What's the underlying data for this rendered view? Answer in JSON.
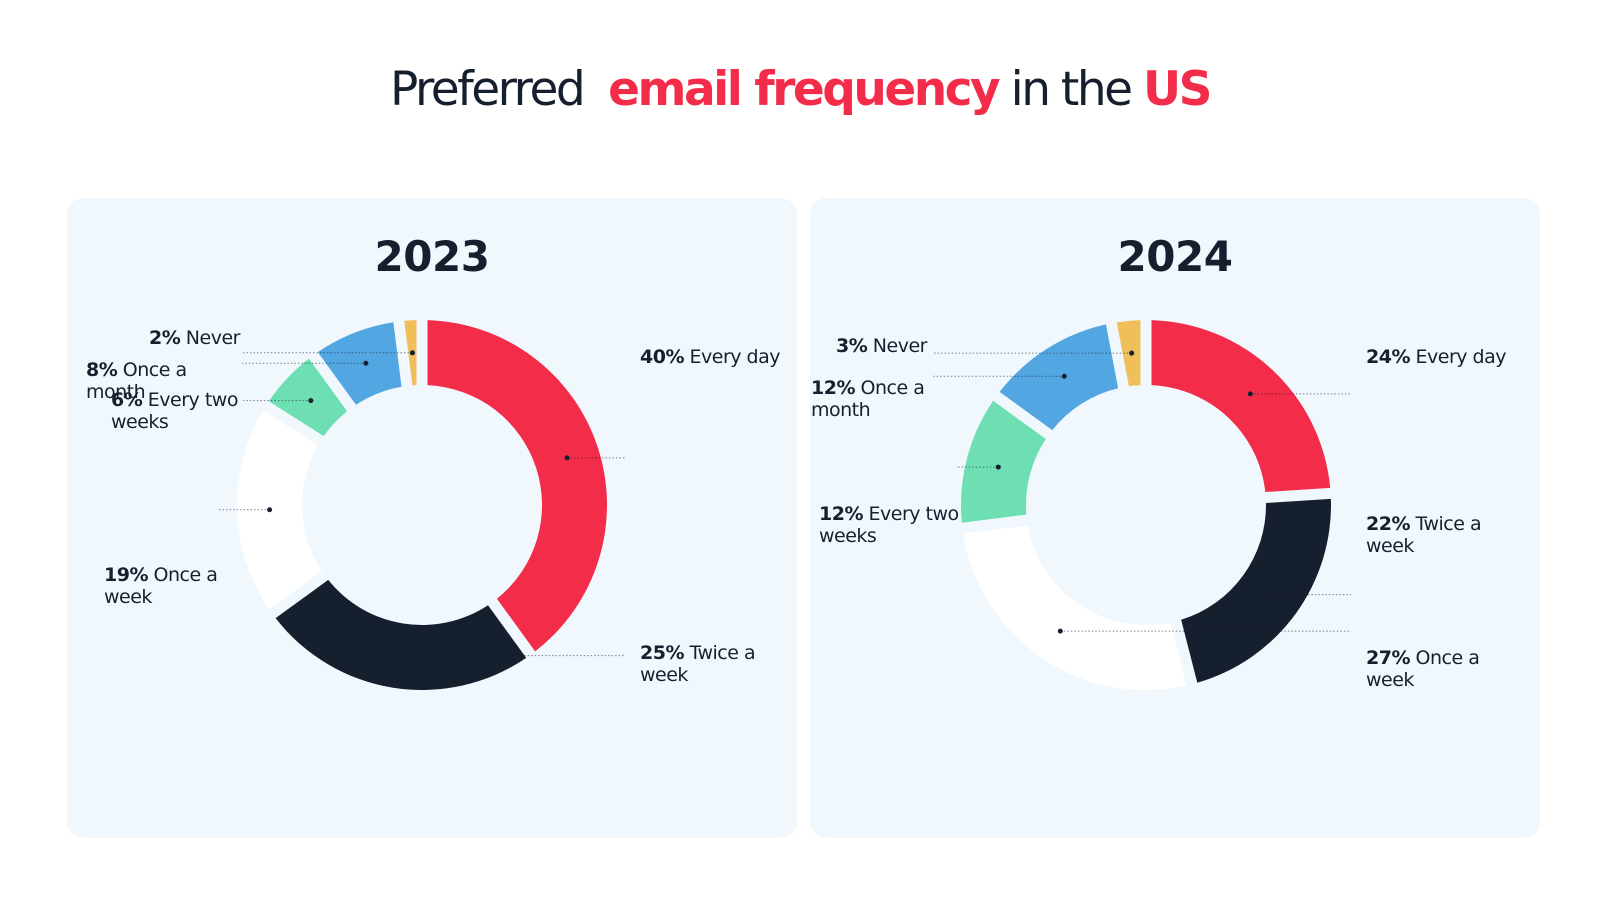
{
  "title": {
    "part1": "Preferred",
    "part2": "email frequency",
    "part3": "in the",
    "part4": "US"
  },
  "colors": {
    "accent": "#f22c49",
    "dark": "#161f2e",
    "panel_bg": "#f1f8fd"
  },
  "chart_data": [
    {
      "type": "pie",
      "variant": "donut",
      "title": "2023",
      "start": "12 o'clock, clockwise",
      "slices": [
        {
          "label": "Every day",
          "value": 40,
          "pct": "40%",
          "color": "#f22c49"
        },
        {
          "label": "Twice a week",
          "value": 25,
          "pct": "25%",
          "color": "#161f2e"
        },
        {
          "label": "Once a week",
          "value": 19,
          "pct": "19%",
          "color": "#ffffff"
        },
        {
          "label": "Every two weeks",
          "value": 6,
          "pct": "6%",
          "color": "#6ddfb3"
        },
        {
          "label": "Once a month",
          "value": 8,
          "pct": "8%",
          "color": "#52a7e2"
        },
        {
          "label": "Never",
          "value": 2,
          "pct": "2%",
          "color": "#f0bf5a"
        }
      ]
    },
    {
      "type": "pie",
      "variant": "donut",
      "title": "2024",
      "start": "12 o'clock, clockwise",
      "slices": [
        {
          "label": "Every day",
          "value": 24,
          "pct": "24%",
          "color": "#f22c49"
        },
        {
          "label": "Twice a week",
          "value": 22,
          "pct": "22%",
          "color": "#161f2e"
        },
        {
          "label": "Once a week",
          "value": 27,
          "pct": "27%",
          "color": "#ffffff"
        },
        {
          "label": "Every two weeks",
          "value": 12,
          "pct": "12%",
          "color": "#6ddfb3"
        },
        {
          "label": "Once a month",
          "value": 12,
          "pct": "12%",
          "color": "#52a7e2"
        },
        {
          "label": "Never",
          "value": 3,
          "pct": "3%",
          "color": "#f0bf5a"
        }
      ]
    }
  ]
}
